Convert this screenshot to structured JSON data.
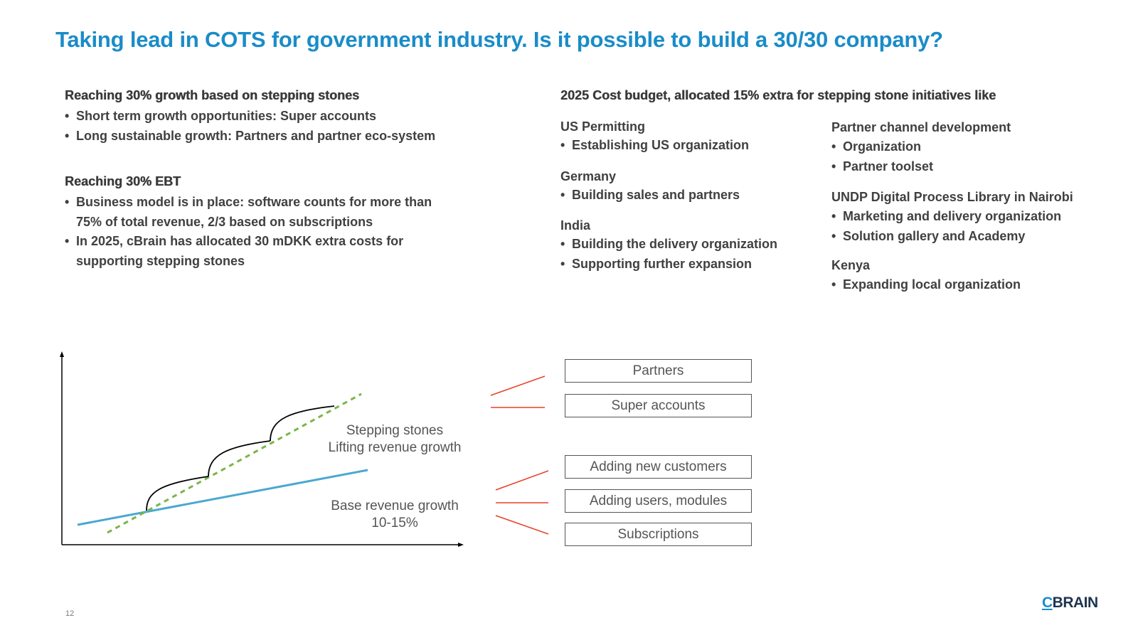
{
  "title": "Taking lead in COTS for government industry. Is it possible to build a 30/30 company?",
  "left": {
    "growth": {
      "heading": "Reaching 30% growth based on stepping stones",
      "items": [
        "Short term growth opportunities: Super accounts",
        "Long sustainable growth: Partners and partner eco-system"
      ]
    },
    "ebt": {
      "heading": "Reaching 30% EBT",
      "items": [
        "Business model is in place: software counts for more than 75% of total revenue, 2/3 based on subscriptions",
        "In 2025, cBrain has allocated 30 mDKK extra costs for supporting stepping stones"
      ]
    }
  },
  "budget": {
    "heading": "2025 Cost budget, allocated 15% extra for stepping stone initiatives like",
    "col1": [
      {
        "name": "US Permitting",
        "items": [
          "Establishing US organization"
        ]
      },
      {
        "name": "Germany",
        "items": [
          "Building sales and partners"
        ]
      },
      {
        "name": "India",
        "items": [
          "Building the delivery organization",
          "Supporting further expansion"
        ]
      }
    ],
    "col2": [
      {
        "name": "Partner channel development",
        "items": [
          "Organization",
          "Partner toolset"
        ]
      },
      {
        "name": "UNDP Digital Process Library in Nairobi",
        "items": [
          "Marketing and delivery organization",
          "Solution gallery and Academy"
        ]
      },
      {
        "name": "Kenya",
        "items": [
          " Expanding local organization"
        ]
      }
    ]
  },
  "diagram": {
    "stepping_label_1": "Stepping stones",
    "stepping_label_2": "Lifting revenue growth",
    "base_label_1": "Base revenue growth",
    "base_label_2": "10-15%",
    "boxes": [
      "Partners",
      "Super accounts",
      "Adding new customers",
      "Adding users, modules",
      "Subscriptions"
    ],
    "colors": {
      "base_line": "#4aa8d0",
      "stepping_line": "#7ab648",
      "connector": "#e8402a",
      "axis": "#000000"
    }
  },
  "footer": {
    "page_number": "12",
    "logo_c": "C",
    "logo_rest": "BRAIN"
  }
}
